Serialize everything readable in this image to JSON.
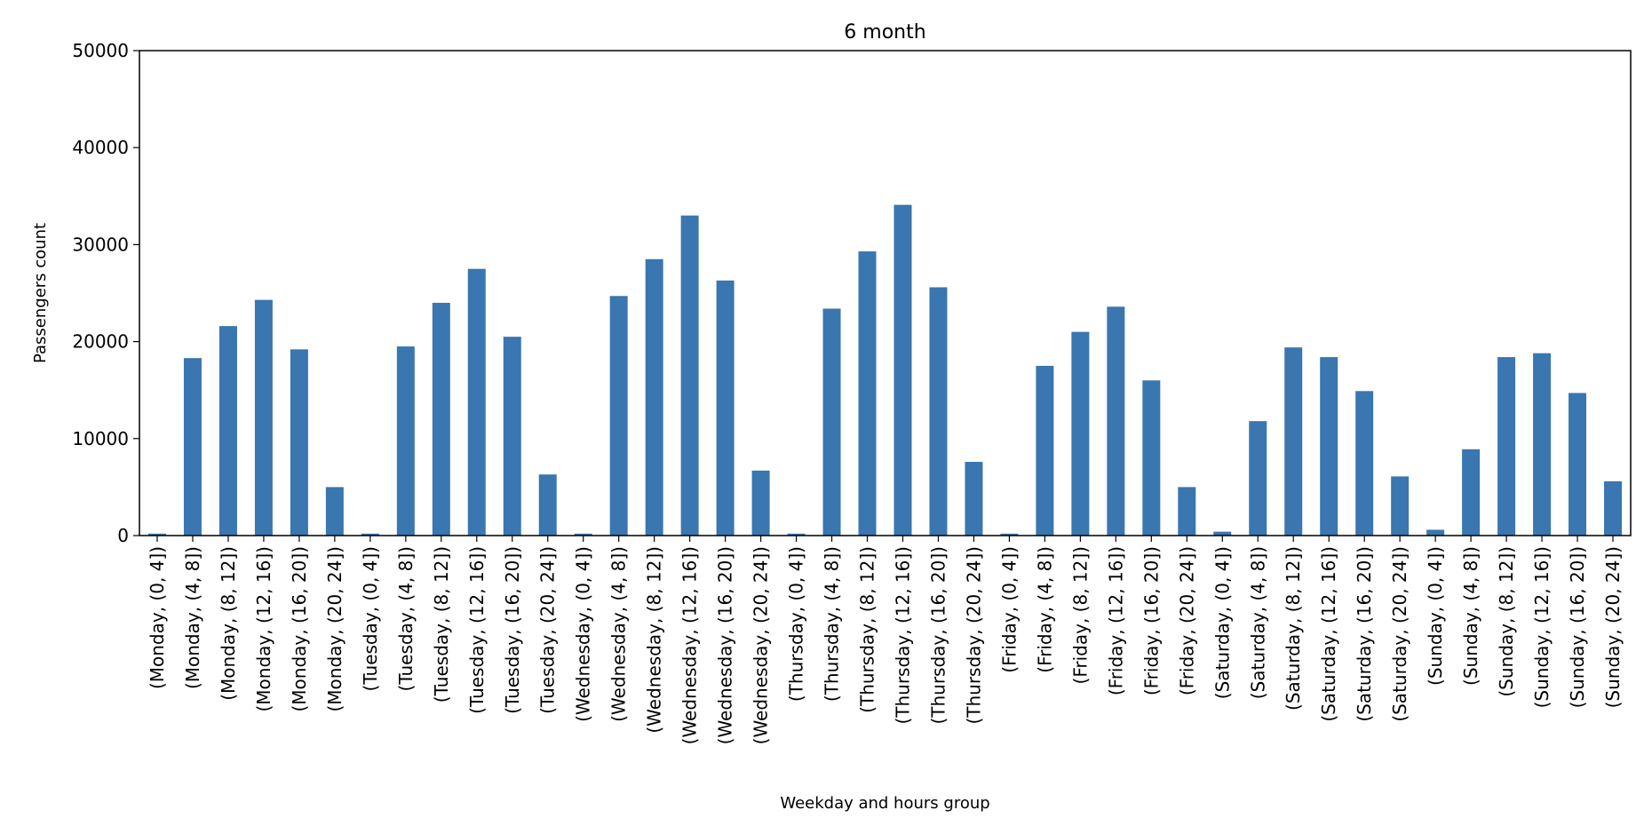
{
  "chart_data": {
    "type": "bar",
    "title": "6 month",
    "xlabel": "Weekday and hours group",
    "ylabel": "Passengers count",
    "ylim": [
      0,
      50000
    ],
    "yticks": [
      0,
      10000,
      20000,
      30000,
      40000,
      50000
    ],
    "ytick_labels": [
      "0",
      "10000",
      "20000",
      "30000",
      "40000",
      "50000"
    ],
    "grid": false,
    "bar_color": "#3a76b0",
    "categories": [
      "(Monday, (0, 4])",
      "(Monday, (4, 8])",
      "(Monday, (8, 12])",
      "(Monday, (12, 16])",
      "(Monday, (16, 20])",
      "(Monday, (20, 24])",
      "(Tuesday, (0, 4])",
      "(Tuesday, (4, 8])",
      "(Tuesday, (8, 12])",
      "(Tuesday, (12, 16])",
      "(Tuesday, (16, 20])",
      "(Tuesday, (20, 24])",
      "(Wednesday, (0, 4])",
      "(Wednesday, (4, 8])",
      "(Wednesday, (8, 12])",
      "(Wednesday, (12, 16])",
      "(Wednesday, (16, 20])",
      "(Wednesday, (20, 24])",
      "(Thursday, (0, 4])",
      "(Thursday, (4, 8])",
      "(Thursday, (8, 12])",
      "(Thursday, (12, 16])",
      "(Thursday, (16, 20])",
      "(Thursday, (20, 24])",
      "(Friday, (0, 4])",
      "(Friday, (4, 8])",
      "(Friday, (8, 12])",
      "(Friday, (12, 16])",
      "(Friday, (16, 20])",
      "(Friday, (20, 24])",
      "(Saturday, (0, 4])",
      "(Saturday, (4, 8])",
      "(Saturday, (8, 12])",
      "(Saturday, (12, 16])",
      "(Saturday, (16, 20])",
      "(Saturday, (20, 24])",
      "(Sunday, (0, 4])",
      "(Sunday, (4, 8])",
      "(Sunday, (8, 12])",
      "(Sunday, (12, 16])",
      "(Sunday, (16, 20])",
      "(Sunday, (20, 24])"
    ],
    "values": [
      200,
      18300,
      21600,
      24300,
      19200,
      5000,
      200,
      19500,
      24000,
      27500,
      20500,
      6300,
      200,
      24700,
      28500,
      33000,
      26300,
      6700,
      200,
      23400,
      29300,
      34100,
      25600,
      7600,
      200,
      17500,
      21000,
      23600,
      16000,
      5000,
      400,
      11800,
      19400,
      18400,
      14900,
      6100,
      600,
      8900,
      18400,
      18800,
      14700,
      5600
    ]
  }
}
